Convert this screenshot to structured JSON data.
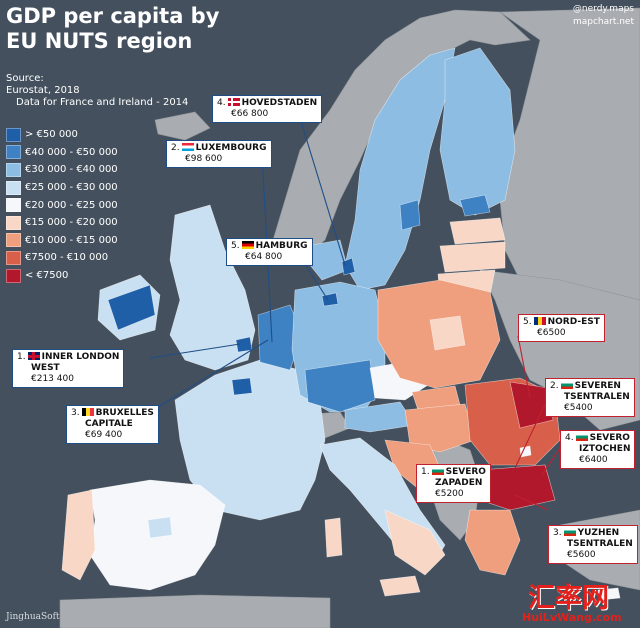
{
  "title": {
    "line1": "GDP per capita by",
    "line2": "EU NUTS region"
  },
  "credits": {
    "handle": "@nerdy.maps",
    "site": "mapchart.net"
  },
  "source": {
    "label": "Source:",
    "dataset": "Eurostat, 2018",
    "note": "Data for France and Ireland - 2014"
  },
  "legend": [
    {
      "label": "> €50 000",
      "color": "#1f5fa8"
    },
    {
      "label": "€40 000 - €50 000",
      "color": "#3e82c4"
    },
    {
      "label": "€30 000 - €40 000",
      "color": "#8dbde3"
    },
    {
      "label": "€25 000 - €30 000",
      "color": "#c9e0f2"
    },
    {
      "label": "€20 000 - €25 000",
      "color": "#f5f7fb"
    },
    {
      "label": "€15 000 - €20 000",
      "color": "#f9d7c6"
    },
    {
      "label": "€10 000 - €15 000",
      "color": "#ef9f7e"
    },
    {
      "label": "€7500 - €10 000",
      "color": "#d8604a"
    },
    {
      "label": "< €7500",
      "color": "#b2182b"
    }
  ],
  "callouts": [
    {
      "rank": "4.",
      "name": "HOVEDSTADEN",
      "value": "€66 800",
      "flag": "denmark"
    },
    {
      "rank": "2.",
      "name": "LUXEMBOURG",
      "value": "€98 600",
      "flag": "luxembourg"
    },
    {
      "rank": "5.",
      "name": "HAMBURG",
      "value": "€64 800",
      "flag": "germany"
    },
    {
      "rank": "1.",
      "name": "INNER LONDON",
      "name2": "WEST",
      "value": "€213 400",
      "flag": "uk"
    },
    {
      "rank": "3.",
      "name": "BRUXELLES",
      "name2": "CAPITALE",
      "value": "€69 400",
      "flag": "belgium"
    },
    {
      "rank": "5.",
      "name": "NORD-EST",
      "value": "€6500",
      "flag": "romania"
    },
    {
      "rank": "2.",
      "name": "SEVEREN",
      "name2": "TSENTRALEN",
      "value": "€5400",
      "flag": "bulgaria"
    },
    {
      "rank": "4.",
      "name": "SEVERO",
      "name2": "IZTOCHEN",
      "value": "€6400",
      "flag": "bulgaria"
    },
    {
      "rank": "1.",
      "name": "SEVERO",
      "name2": "ZAPADEN",
      "value": "€5200",
      "flag": "bulgaria"
    },
    {
      "rank": "3.",
      "name": "YUZHEN",
      "name2": "TSENTRALEN",
      "value": "€5600",
      "flag": "bulgaria"
    }
  ],
  "watermarks": {
    "cn": "汇率网",
    "site": "HuiLvWang.com",
    "soft": "JinghuaSoft"
  },
  "colors": {
    "background": "#44505d",
    "non_eu_land": "#a9adb1",
    "callout_border_top": "#1f4e86",
    "callout_border_bottom": "#c0212f"
  }
}
